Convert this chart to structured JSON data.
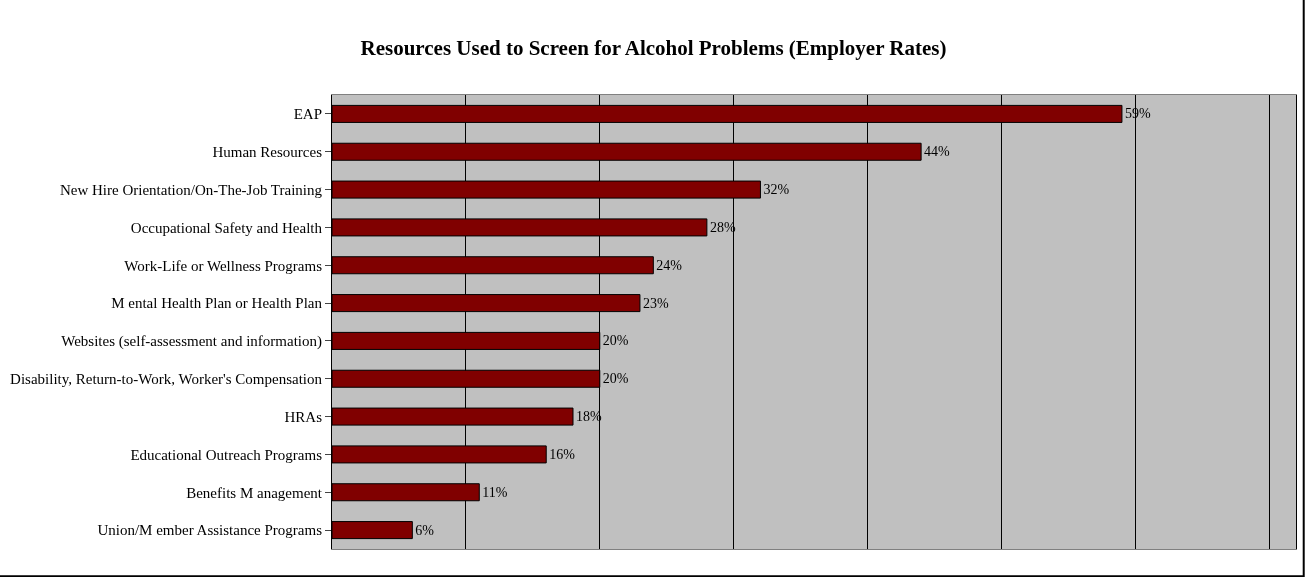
{
  "chart_data": {
    "type": "bar",
    "orientation": "horizontal",
    "title": "Resources Used to Screen for Alcohol Problems (Employer Rates)",
    "categories": [
      "EAP",
      "Human Resources",
      "New Hire Orientation/On-The-Job Training",
      "Occupational Safety and Health",
      "Work-Life or Wellness Programs",
      "M ental Health Plan or Health Plan",
      "Websites (self-assessment and information)",
      "Disability, Return-to-Work, Worker's Compensation",
      "HRAs",
      "Educational Outreach Programs",
      "Benefits M anagement",
      "Union/M ember Assistance Programs"
    ],
    "values": [
      59,
      44,
      32,
      28,
      24,
      23,
      20,
      20,
      18,
      16,
      11,
      6
    ],
    "value_labels": [
      "59%",
      "44%",
      "32%",
      "28%",
      "24%",
      "23%",
      "20%",
      "20%",
      "18%",
      "16%",
      "11%",
      "6%"
    ],
    "color": "#800000",
    "xlim": [
      0,
      72
    ],
    "xticks": [
      {
        "value": 0,
        "label": null
      },
      {
        "value": 10,
        "label": null
      },
      {
        "value": 20,
        "label": null
      },
      {
        "value": 30,
        "label": null
      },
      {
        "value": 40,
        "label": null
      },
      {
        "value": 50,
        "label": null
      },
      {
        "value": 60,
        "label": null
      },
      {
        "value": 70,
        "label": null
      }
    ],
    "grid": "x",
    "tick_labels": "y",
    "legend": false
  }
}
